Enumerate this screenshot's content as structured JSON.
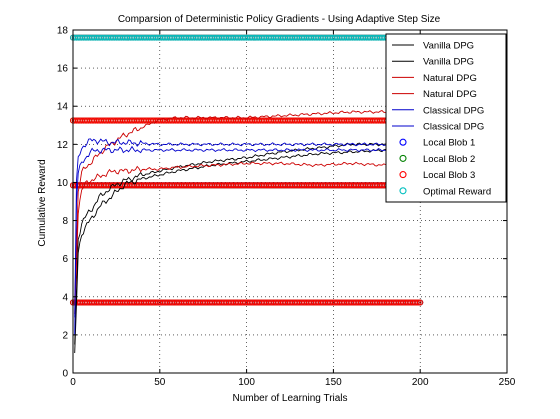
{
  "chart_data": {
    "type": "line",
    "title": "Comparsion of Deterministic Policy Gradients - Using Adaptive Step Size",
    "xlabel": "Number of Learning Trials",
    "ylabel": "Cumulative Reward",
    "xlim": [
      0,
      250
    ],
    "ylim": [
      0,
      18
    ],
    "xticks": [
      0,
      50,
      100,
      150,
      200,
      250
    ],
    "yticks": [
      0,
      2,
      4,
      6,
      8,
      10,
      12,
      14,
      16,
      18
    ],
    "grid": true,
    "legend_position": "top-right",
    "legend_entries": [
      "Vanilla DPG",
      "Vanilla DPG",
      "Natural DPG",
      "Natural DPG",
      "Classical DPG",
      "Classical DPG",
      "Local Blob 1",
      "Local Blob 2",
      "Local Blob 3",
      "Optimal Reward"
    ],
    "series": [
      {
        "name": "Vanilla DPG",
        "color": "#000000",
        "kind": "line",
        "x": [
          1,
          3,
          5,
          8,
          10,
          15,
          20,
          25,
          30,
          40,
          50,
          60,
          80,
          100,
          120,
          140,
          160,
          180,
          200
        ],
        "y": [
          0.9,
          6.3,
          7.3,
          7.8,
          8.0,
          8.7,
          9.1,
          9.5,
          9.9,
          10.2,
          10.4,
          10.6,
          10.9,
          11.1,
          11.3,
          11.5,
          11.6,
          11.7,
          11.8
        ]
      },
      {
        "name": "Vanilla DPG",
        "color": "#000000",
        "kind": "line",
        "x": [
          1,
          3,
          5,
          8,
          10,
          15,
          20,
          25,
          30,
          40,
          50,
          60,
          80,
          100,
          120,
          140,
          160,
          180,
          200
        ],
        "y": [
          1.5,
          7.0,
          7.9,
          8.3,
          8.5,
          9.2,
          9.6,
          9.9,
          10.1,
          10.4,
          10.6,
          10.8,
          11.1,
          11.3,
          11.6,
          11.8,
          12.0,
          12.0,
          12.0
        ]
      },
      {
        "name": "Natural DPG",
        "color": "#cc0000",
        "kind": "line",
        "x": [
          1,
          3,
          5,
          8,
          10,
          15,
          20,
          25,
          30,
          40,
          50,
          60,
          80,
          100,
          120,
          140,
          160,
          180,
          200
        ],
        "y": [
          3.0,
          8.5,
          9.6,
          10.0,
          10.1,
          10.3,
          10.5,
          10.6,
          10.6,
          10.7,
          10.7,
          10.8,
          10.9,
          11.0,
          11.0,
          10.9,
          11.0,
          10.9,
          10.9
        ]
      },
      {
        "name": "Natural DPG",
        "color": "#cc0000",
        "kind": "line",
        "x": [
          1,
          3,
          5,
          8,
          10,
          15,
          20,
          25,
          30,
          40,
          45,
          50,
          60,
          80,
          100,
          120,
          140,
          160,
          180,
          200
        ],
        "y": [
          4.0,
          9.5,
          10.5,
          10.9,
          11.0,
          11.5,
          11.9,
          12.2,
          12.5,
          12.9,
          13.1,
          13.3,
          13.4,
          13.4,
          13.4,
          13.5,
          13.6,
          13.7,
          13.7,
          13.8
        ]
      },
      {
        "name": "Classical DPG",
        "color": "#0000cc",
        "kind": "line",
        "x": [
          1,
          2,
          3,
          5,
          8,
          10,
          15,
          20,
          30,
          50,
          100,
          150,
          200
        ],
        "y": [
          2.0,
          9.0,
          10.5,
          11.0,
          11.4,
          11.6,
          11.7,
          11.7,
          11.7,
          11.7,
          11.7,
          11.7,
          11.7
        ]
      },
      {
        "name": "Classical DPG",
        "color": "#0000cc",
        "kind": "line",
        "x": [
          1,
          2,
          3,
          5,
          8,
          10,
          15,
          20,
          30,
          50,
          100,
          150,
          200
        ],
        "y": [
          3.0,
          10.0,
          11.2,
          11.8,
          12.1,
          12.2,
          12.2,
          12.1,
          12.1,
          12.0,
          12.0,
          12.0,
          12.0
        ]
      },
      {
        "name": "Local Blob 1",
        "color": "#0000ff",
        "kind": "marker",
        "x_range": [
          0,
          200
        ],
        "y": [
          3.7,
          9.85
        ]
      },
      {
        "name": "Local Blob 2",
        "color": "#008000",
        "kind": "marker",
        "x_range": [
          0,
          200
        ],
        "y": [
          3.7,
          9.85,
          13.25
        ]
      },
      {
        "name": "Local Blob 3",
        "color": "#ff0000",
        "kind": "marker",
        "x_range": [
          0,
          200
        ],
        "y": [
          3.7,
          9.85,
          13.25,
          17.6
        ]
      },
      {
        "name": "Optimal Reward",
        "color": "#00bfbf",
        "kind": "marker",
        "x_range": [
          0,
          200
        ],
        "y": [
          17.6
        ]
      }
    ]
  }
}
